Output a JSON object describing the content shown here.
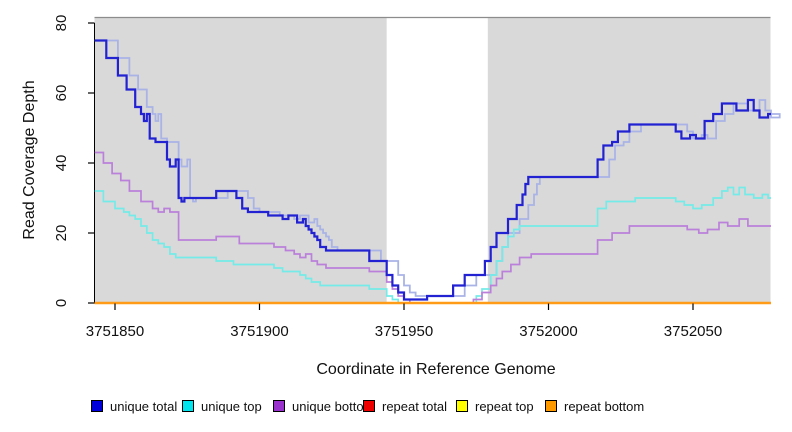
{
  "chart_data": {
    "type": "line",
    "subtype": "step",
    "title": "",
    "xlabel": "Coordinate in Reference Genome",
    "ylabel": "Read Coverage Depth",
    "xlim": [
      3751843,
      3752077
    ],
    "ylim": [
      0,
      80
    ],
    "x_ticks": [
      "3751850",
      "3751900",
      "3751950",
      "3752000",
      "3752050"
    ],
    "x_tick_values": [
      3751850,
      3751900,
      3751950,
      3752000,
      3752050
    ],
    "y_ticks": [
      "0",
      "20",
      "40",
      "60",
      "80"
    ],
    "y_tick_values": [
      0,
      20,
      40,
      60,
      80
    ],
    "grid": false,
    "panel_bg": "#d9d9d9",
    "panel_top_line_color": "#8c8c8c",
    "highlight_region": {
      "x0": 3751944,
      "x1": 3751979,
      "color": "#ffffff"
    },
    "legend_position": "bottom",
    "series": [
      {
        "name": "unique total",
        "line_color": "#2222d3",
        "swatch_color": "#0000dd",
        "line_width": 2.2,
        "points": [
          [
            3751843,
            75
          ],
          [
            3751847,
            70
          ],
          [
            3751851,
            65
          ],
          [
            3751854,
            61
          ],
          [
            3751857,
            56
          ],
          [
            3751859,
            54
          ],
          [
            3751860,
            52
          ],
          [
            3751861,
            54
          ],
          [
            3751862,
            47
          ],
          [
            3751864,
            46
          ],
          [
            3751868,
            41
          ],
          [
            3751869,
            39
          ],
          [
            3751871,
            41
          ],
          [
            3751872,
            30
          ],
          [
            3751873,
            29
          ],
          [
            3751874,
            30
          ],
          [
            3751885,
            32
          ],
          [
            3751892,
            30
          ],
          [
            3751894,
            27
          ],
          [
            3751896,
            26
          ],
          [
            3751903,
            25
          ],
          [
            3751908,
            24
          ],
          [
            3751910,
            25
          ],
          [
            3751913,
            23
          ],
          [
            3751915,
            24
          ],
          [
            3751916,
            22
          ],
          [
            3751917,
            21
          ],
          [
            3751918,
            20
          ],
          [
            3751919,
            19
          ],
          [
            3751920,
            18
          ],
          [
            3751921,
            16
          ],
          [
            3751923,
            15
          ],
          [
            3751938,
            12
          ],
          [
            3751944,
            8
          ],
          [
            3751946,
            5
          ],
          [
            3751948,
            3
          ],
          [
            3751950,
            1
          ],
          [
            3751958,
            2
          ],
          [
            3751967,
            5
          ],
          [
            3751971,
            8
          ],
          [
            3751978,
            12
          ],
          [
            3751980,
            16
          ],
          [
            3751982,
            20
          ],
          [
            3751986,
            24
          ],
          [
            3751989,
            28
          ],
          [
            3751991,
            31
          ],
          [
            3751992,
            34
          ],
          [
            3751993,
            36
          ],
          [
            3752017,
            41
          ],
          [
            3752019,
            45
          ],
          [
            3752022,
            46
          ],
          [
            3752024,
            49
          ],
          [
            3752028,
            51
          ],
          [
            3752044,
            49
          ],
          [
            3752046,
            47
          ],
          [
            3752049,
            48
          ],
          [
            3752051,
            47
          ],
          [
            3752054,
            52
          ],
          [
            3752057,
            54
          ],
          [
            3752060,
            57
          ],
          [
            3752065,
            55
          ],
          [
            3752069,
            58
          ],
          [
            3752071,
            55
          ],
          [
            3752073,
            53
          ],
          [
            3752076,
            54
          ]
        ]
      },
      {
        "name": "unique top",
        "line_color": "#74ebe8",
        "swatch_color": "#00e5ee",
        "line_width": 1.7,
        "points": [
          [
            3751843,
            32
          ],
          [
            3751846,
            29
          ],
          [
            3751850,
            27
          ],
          [
            3751853,
            26
          ],
          [
            3751855,
            25
          ],
          [
            3751857,
            24
          ],
          [
            3751859,
            22
          ],
          [
            3751861,
            20
          ],
          [
            3751863,
            18
          ],
          [
            3751865,
            17
          ],
          [
            3751867,
            16
          ],
          [
            3751869,
            14
          ],
          [
            3751871,
            13
          ],
          [
            3751885,
            12
          ],
          [
            3751891,
            11
          ],
          [
            3751905,
            10
          ],
          [
            3751908,
            9
          ],
          [
            3751914,
            8
          ],
          [
            3751916,
            7
          ],
          [
            3751918,
            6
          ],
          [
            3751921,
            5
          ],
          [
            3751938,
            4
          ],
          [
            3751944,
            2
          ],
          [
            3751946,
            1
          ],
          [
            3751948,
            0
          ],
          [
            3751975,
            2
          ],
          [
            3751977,
            4
          ],
          [
            3751980,
            8
          ],
          [
            3751982,
            12
          ],
          [
            3751984,
            16
          ],
          [
            3751986,
            19
          ],
          [
            3751988,
            21
          ],
          [
            3751990,
            22
          ],
          [
            3752017,
            27
          ],
          [
            3752020,
            29
          ],
          [
            3752030,
            30
          ],
          [
            3752044,
            29
          ],
          [
            3752047,
            28
          ],
          [
            3752050,
            27
          ],
          [
            3752053,
            28
          ],
          [
            3752057,
            30
          ],
          [
            3752060,
            32
          ],
          [
            3752062,
            33
          ],
          [
            3752064,
            31
          ],
          [
            3752066,
            33
          ],
          [
            3752068,
            31
          ],
          [
            3752071,
            30
          ],
          [
            3752074,
            31
          ],
          [
            3752076,
            30
          ]
        ]
      },
      {
        "name": "unique bottom",
        "line_color": "#bb80da",
        "swatch_color": "#9932cc",
        "line_width": 1.7,
        "points": [
          [
            3751843,
            43
          ],
          [
            3751846,
            40
          ],
          [
            3751849,
            37
          ],
          [
            3751852,
            35
          ],
          [
            3751855,
            32
          ],
          [
            3751859,
            29
          ],
          [
            3751863,
            27
          ],
          [
            3751865,
            26
          ],
          [
            3751867,
            27
          ],
          [
            3751869,
            26
          ],
          [
            3751872,
            18
          ],
          [
            3751885,
            19
          ],
          [
            3751893,
            17
          ],
          [
            3751905,
            16
          ],
          [
            3751909,
            15
          ],
          [
            3751912,
            14
          ],
          [
            3751914,
            13
          ],
          [
            3751916,
            14
          ],
          [
            3751918,
            12
          ],
          [
            3751920,
            11
          ],
          [
            3751923,
            10
          ],
          [
            3751938,
            9
          ],
          [
            3751944,
            6
          ],
          [
            3751946,
            4
          ],
          [
            3751948,
            2
          ],
          [
            3751950,
            1
          ],
          [
            3751952,
            0
          ],
          [
            3751974,
            1
          ],
          [
            3751977,
            3
          ],
          [
            3751980,
            5
          ],
          [
            3751982,
            7
          ],
          [
            3751984,
            9
          ],
          [
            3751987,
            11
          ],
          [
            3751990,
            13
          ],
          [
            3751994,
            14
          ],
          [
            3752017,
            18
          ],
          [
            3752022,
            20
          ],
          [
            3752028,
            22
          ],
          [
            3752048,
            21
          ],
          [
            3752052,
            20
          ],
          [
            3752055,
            21
          ],
          [
            3752059,
            23
          ],
          [
            3752062,
            22
          ],
          [
            3752066,
            24
          ],
          [
            3752069,
            22
          ]
        ]
      },
      {
        "name": "repeat total",
        "line_color": "#dd0000",
        "swatch_color": "#ee0000",
        "line_width": 1.7,
        "points": [
          [
            3751843,
            0
          ]
        ]
      },
      {
        "name": "repeat top",
        "line_color": "#ffff00",
        "swatch_color": "#ffff00",
        "line_width": 1.7,
        "points": [
          [
            3751843,
            0
          ]
        ]
      },
      {
        "name": "repeat bottom",
        "line_color": "#ff9b16",
        "swatch_color": "#ff9900",
        "line_width": 2.4,
        "points": [
          [
            3751843,
            0
          ]
        ]
      }
    ],
    "unlabeled_shadow_line": {
      "copy_of": "unique total",
      "shift_bp": 4,
      "min_value": 2,
      "color": "#a9b3e6",
      "line_width": 1.8
    },
    "legend": [
      {
        "label": "unique total",
        "color": "#0000dd"
      },
      {
        "label": "unique top",
        "color": "#00e5ee"
      },
      {
        "label": "unique bottom",
        "color": "#9932cc"
      },
      {
        "label": "repeat total",
        "color": "#ee0000"
      },
      {
        "label": "repeat top",
        "color": "#ffff00"
      },
      {
        "label": "repeat bottom",
        "color": "#ff9900"
      }
    ]
  }
}
